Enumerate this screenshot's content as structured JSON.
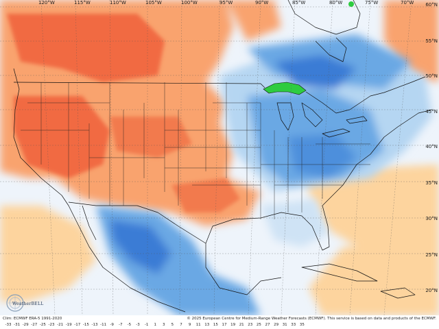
{
  "map": {
    "longitude_labels": [
      "120°W",
      "115°W",
      "110°W",
      "105°W",
      "100°W",
      "95°W",
      "90°W",
      "85°W",
      "80°W",
      "75°W",
      "70°W"
    ],
    "latitude_labels": [
      "60°N",
      "55°N",
      "50°N",
      "45°N",
      "40°N",
      "35°N",
      "30°N",
      "25°N",
      "20°N"
    ],
    "colors": {
      "warm_strong": "#f16a43",
      "warm": "#f9a36e",
      "warm_light": "#fdd49e",
      "neutral": "#eef4fb",
      "cool_light": "#b5d6f2",
      "cool": "#6aa8e4",
      "cool_strong": "#3a7bd5",
      "lake_green": "#2ecc40",
      "border": "#111111"
    }
  },
  "footer": {
    "left": "Clim: ECMWF ERA-5 1991-2020",
    "right": "© 2025 European Centre for Medium-Range Weather Forecasts (ECMWF). This service is based on data and products of the ECMWF."
  },
  "scale": {
    "ticks": [
      "-33",
      "-31",
      "-29",
      "-27",
      "-25",
      "-23",
      "-21",
      "-19",
      "-17",
      "-15",
      "-13",
      "-11",
      "-9",
      "-7",
      "-5",
      "-3",
      "-1",
      "1",
      "3",
      "5",
      "7",
      "9",
      "11",
      "13",
      "15",
      "17",
      "19",
      "21",
      "23",
      "25",
      "27",
      "29",
      "31",
      "33",
      "35"
    ]
  },
  "logo": {
    "text": "WeatherBELL"
  }
}
